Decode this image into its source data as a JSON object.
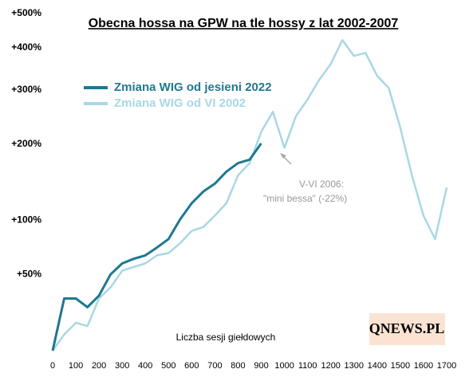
{
  "chart_data": {
    "type": "line",
    "title": "Obecna hossa na GPW na tle hossy z lat 2002-2007",
    "x_label": "Liczba sesji giełdowych",
    "x": [
      0,
      50,
      100,
      150,
      200,
      250,
      300,
      350,
      400,
      450,
      500,
      550,
      600,
      650,
      700,
      750,
      800,
      850,
      900,
      950,
      1000,
      1050,
      1100,
      1150,
      1200,
      1250,
      1300,
      1350,
      1400,
      1450,
      1500,
      1550,
      1600,
      1650,
      1700
    ],
    "series": [
      {
        "name": "Zmiana WIG od jesieni 2022",
        "color": "#1f7891",
        "values": [
          0,
          32,
          32,
          26,
          34,
          50,
          59,
          63,
          66,
          73,
          81,
          101,
          119,
          133,
          143,
          159,
          171,
          176,
          201,
          null,
          null,
          null,
          null,
          null,
          null,
          null,
          null,
          null,
          null,
          null,
          null,
          null,
          null,
          null,
          null
        ]
      },
      {
        "name": "Zmiana WIG od VI 2002",
        "color": "#a8d8e4",
        "values": [
          0,
          9,
          16,
          14,
          32,
          40,
          53,
          56,
          59,
          66,
          68,
          77,
          89,
          93,
          105,
          119,
          154,
          171,
          220,
          256,
          194,
          248,
          280,
          322,
          359,
          421,
          379,
          387,
          331,
          304,
          227,
          154,
          105,
          81,
          138
        ]
      }
    ],
    "xlim": [
      0,
      1700
    ],
    "xticks": [
      0,
      100,
      200,
      300,
      400,
      500,
      600,
      700,
      800,
      900,
      1000,
      1100,
      1200,
      1300,
      1400,
      1500,
      1600,
      1700
    ],
    "ylim": [
      0,
      500
    ],
    "ylog": true,
    "yticks": [
      {
        "value": 50,
        "label": "+50%"
      },
      {
        "value": 100,
        "label": "+100%"
      },
      {
        "value": 200,
        "label": "+200%"
      },
      {
        "value": 300,
        "label": "+300%"
      },
      {
        "value": 400,
        "label": "+400%"
      },
      {
        "value": 500,
        "label": "+500%"
      }
    ],
    "grid": false,
    "annotation": [
      "V-VI 2006:",
      "\"mini bessa\" (-22%)"
    ],
    "logo": "QNEWS.PL"
  }
}
